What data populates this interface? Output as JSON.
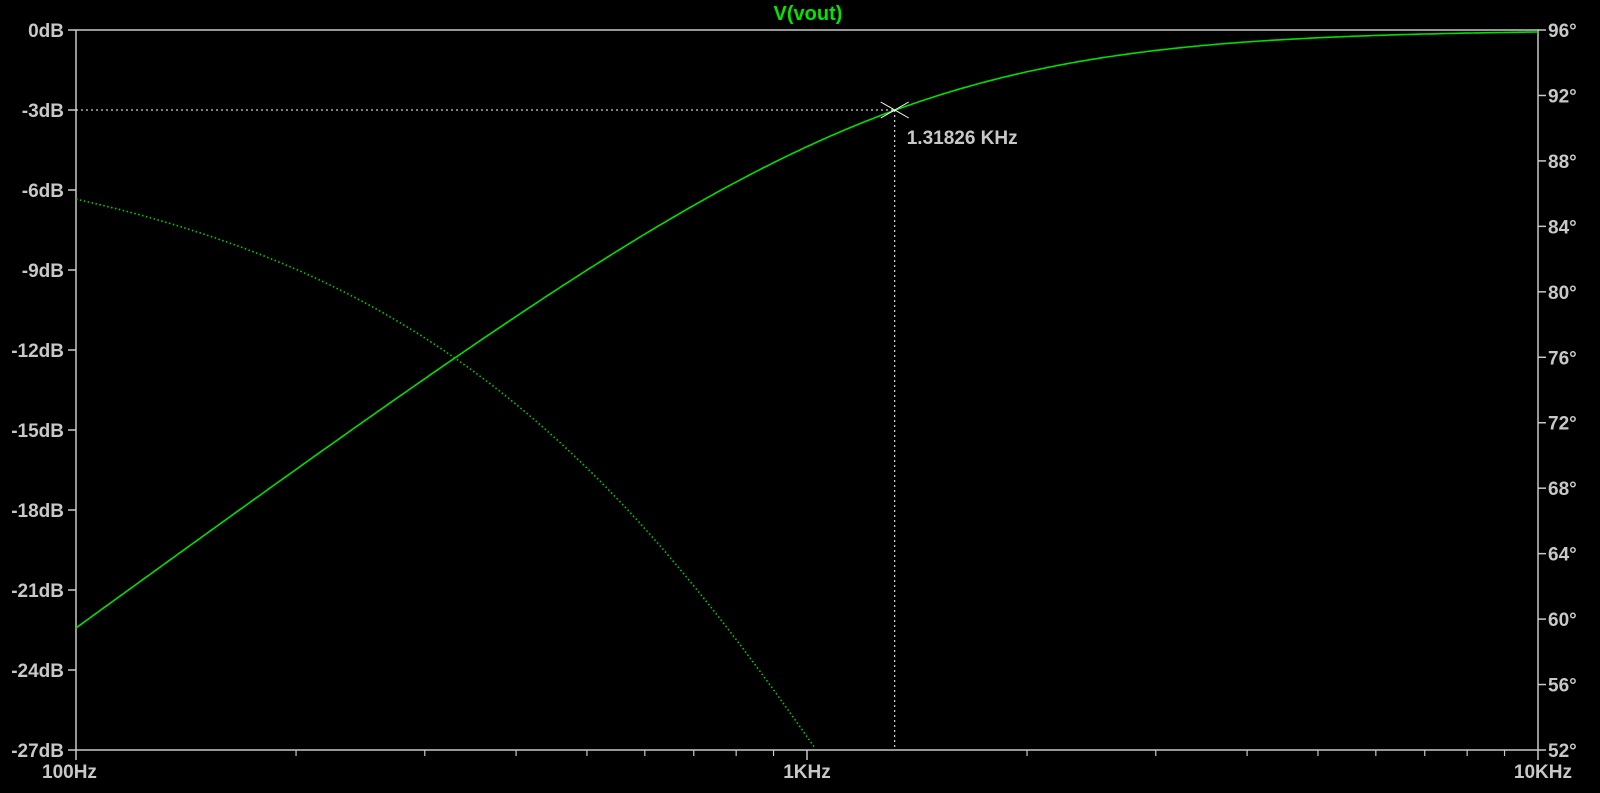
{
  "chart_data": {
    "type": "line",
    "title": "V(vout)",
    "x_scale": "log",
    "xlim": [
      100,
      10000
    ],
    "x_ticks": [
      {
        "value": 100,
        "label": "100Hz"
      },
      {
        "value": 1000,
        "label": "1KHz"
      },
      {
        "value": 10000,
        "label": "10KHz"
      }
    ],
    "left_axis": {
      "ylim": [
        -27,
        0
      ],
      "ticks": [
        {
          "value": 0,
          "label": "0dB"
        },
        {
          "value": -3,
          "label": "-3dB"
        },
        {
          "value": -6,
          "label": "-6dB"
        },
        {
          "value": -9,
          "label": "-9dB"
        },
        {
          "value": -12,
          "label": "-12dB"
        },
        {
          "value": -15,
          "label": "-15dB"
        },
        {
          "value": -18,
          "label": "-18dB"
        },
        {
          "value": -21,
          "label": "-21dB"
        },
        {
          "value": -24,
          "label": "-24dB"
        },
        {
          "value": -27,
          "label": "-27dB"
        }
      ]
    },
    "right_axis": {
      "ylim": [
        52,
        96
      ],
      "ticks": [
        {
          "value": 96,
          "label": "96°"
        },
        {
          "value": 92,
          "label": "92°"
        },
        {
          "value": 88,
          "label": "88°"
        },
        {
          "value": 84,
          "label": "84°"
        },
        {
          "value": 80,
          "label": "80°"
        },
        {
          "value": 76,
          "label": "76°"
        },
        {
          "value": 72,
          "label": "72°"
        },
        {
          "value": 68,
          "label": "68°"
        },
        {
          "value": 64,
          "label": "64°"
        },
        {
          "value": 60,
          "label": "60°"
        },
        {
          "value": 56,
          "label": "56°"
        },
        {
          "value": 52,
          "label": "52°"
        }
      ]
    },
    "grid": false,
    "series": [
      {
        "axis": "left",
        "style": "solid",
        "color": "#00e000",
        "cutoff_hz": 1318.26
      },
      {
        "axis": "right",
        "style": "dotted",
        "color": "#00d000",
        "cutoff_hz": 1318.26
      }
    ],
    "cursor": {
      "x": 1318.26,
      "y_db": -3,
      "label": "1.31826 KHz"
    }
  },
  "colors": {
    "background": "#000000",
    "axis": "#c8c8c8",
    "trace": "#00e000",
    "title": "#00e600",
    "cursor": "#ffffff"
  }
}
